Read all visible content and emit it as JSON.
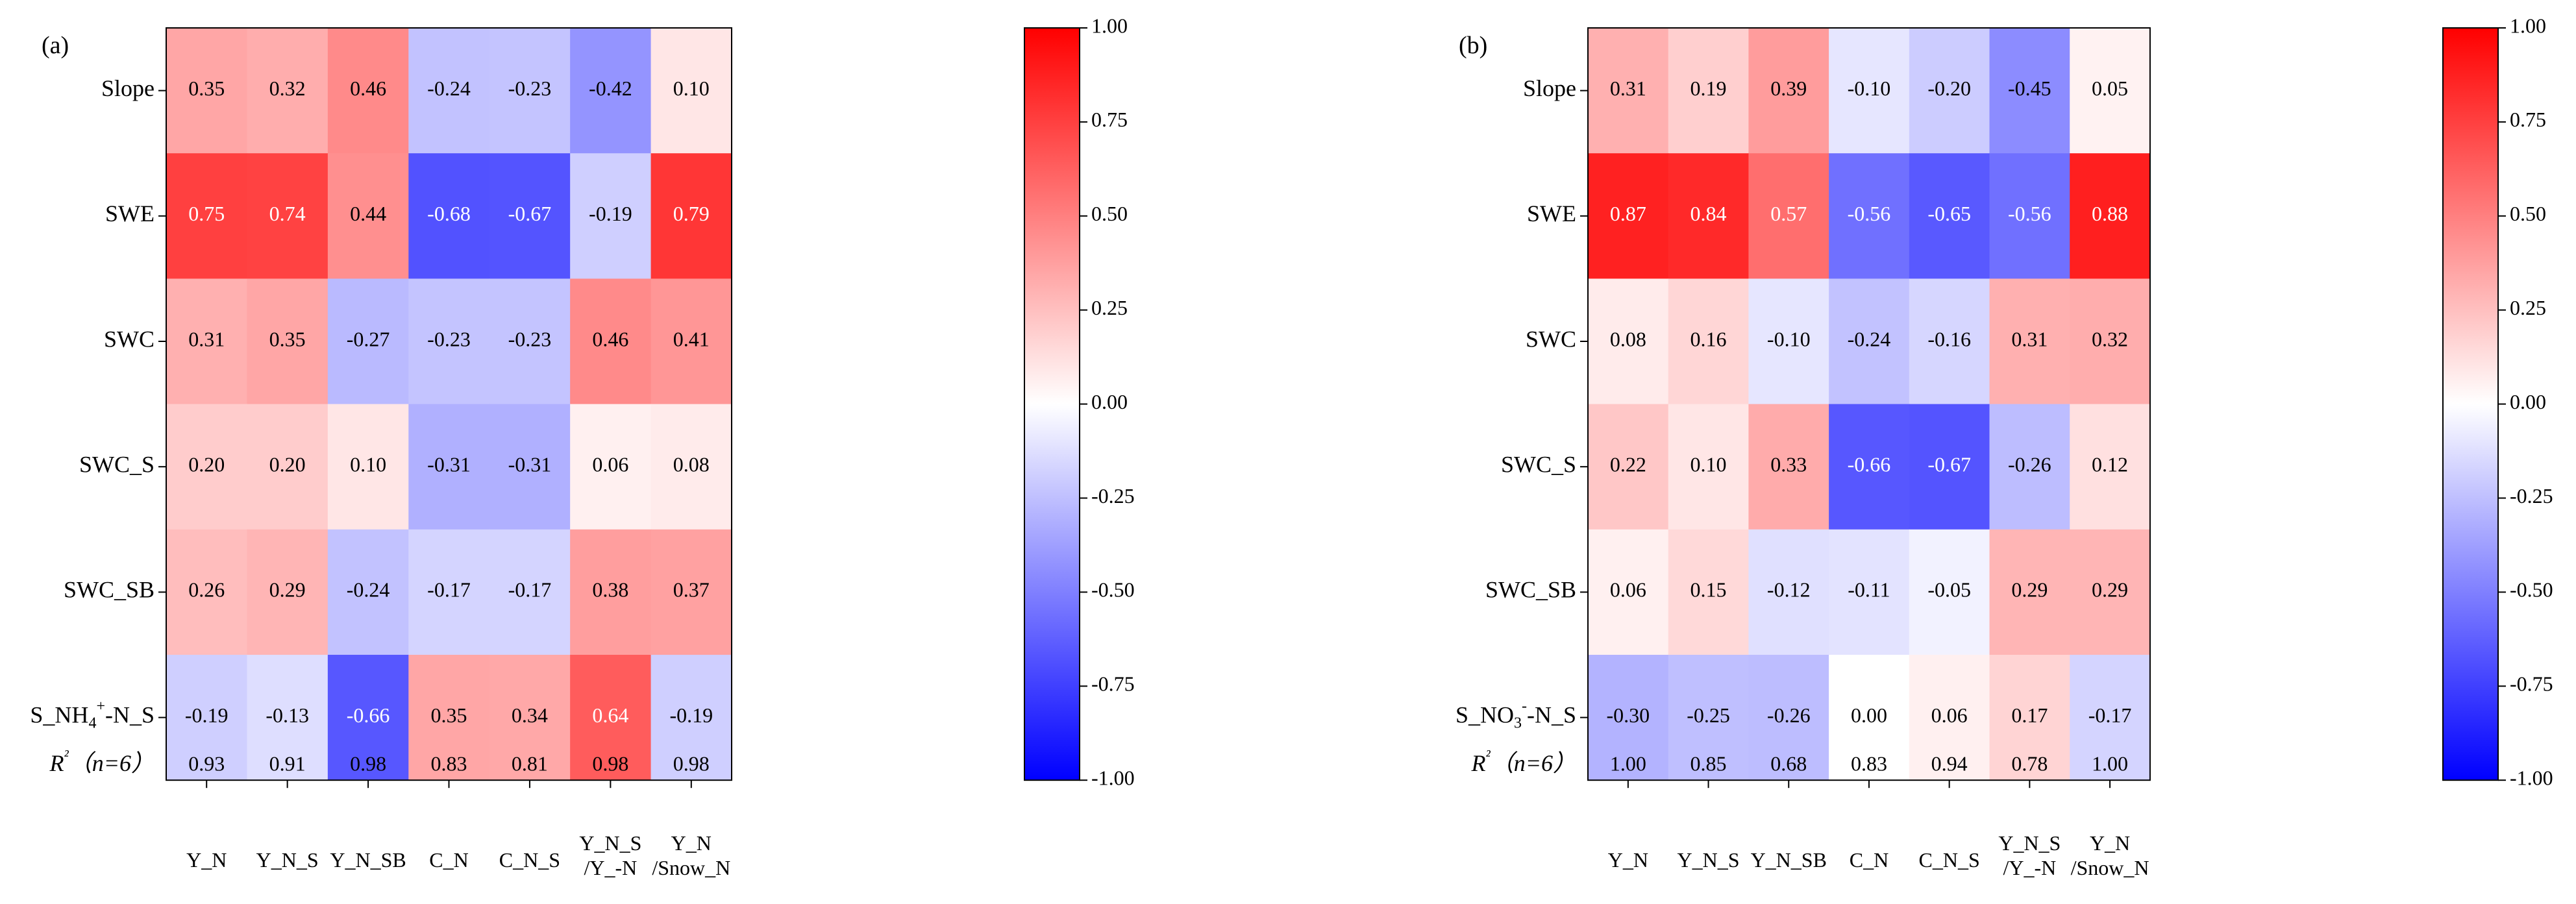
{
  "chart_data": [
    {
      "type": "heatmap",
      "panel_label": "(a)",
      "rows": [
        "Slope",
        "SWE",
        "SWC",
        "SWC_S",
        "SWC_SB",
        "S_NH4+-N_S"
      ],
      "columns": [
        "Y_N",
        "Y_N_S",
        "Y_N_SB",
        "C_N",
        "C_N_S",
        "Y_N_S\n/Y_-N",
        "Y_N\n/Snow_N"
      ],
      "values": [
        [
          0.35,
          0.32,
          0.46,
          -0.24,
          -0.23,
          -0.42,
          0.1
        ],
        [
          0.75,
          0.74,
          0.44,
          -0.68,
          -0.67,
          -0.19,
          0.79
        ],
        [
          0.31,
          0.35,
          -0.27,
          -0.23,
          -0.23,
          0.46,
          0.41
        ],
        [
          0.2,
          0.2,
          0.1,
          -0.31,
          -0.31,
          0.06,
          0.08
        ],
        [
          0.26,
          0.29,
          -0.24,
          -0.17,
          -0.17,
          0.38,
          0.37
        ],
        [
          -0.19,
          -0.13,
          -0.66,
          0.35,
          0.34,
          0.64,
          -0.19
        ]
      ],
      "r2_label": "R²（n=6）",
      "r2_values": [
        "0.93",
        "0.91",
        "0.98",
        "0.83",
        "0.81",
        "0.98",
        "0.98"
      ],
      "colorbar": {
        "min": -1.0,
        "max": 1.0,
        "ticks": [
          "1.00",
          "0.75",
          "0.50",
          "0.25",
          "0.00",
          "-0.25",
          "-0.50",
          "-0.75",
          "-1.00"
        ]
      }
    },
    {
      "type": "heatmap",
      "panel_label": "(b)",
      "rows": [
        "Slope",
        "SWE",
        "SWC",
        "SWC_S",
        "SWC_SB",
        "S_NO3--N_S"
      ],
      "columns": [
        "Y_N",
        "Y_N_S",
        "Y_N_SB",
        "C_N",
        "C_N_S",
        "Y_N_S\n/Y_-N",
        "Y_N\n/Snow_N"
      ],
      "values": [
        [
          0.31,
          0.19,
          0.39,
          -0.1,
          -0.2,
          -0.45,
          0.05
        ],
        [
          0.87,
          0.84,
          0.57,
          -0.56,
          -0.65,
          -0.56,
          0.88
        ],
        [
          0.08,
          0.16,
          -0.1,
          -0.24,
          -0.16,
          0.31,
          0.32
        ],
        [
          0.22,
          0.1,
          0.33,
          -0.66,
          -0.67,
          -0.26,
          0.12
        ],
        [
          0.06,
          0.15,
          -0.12,
          -0.11,
          -0.05,
          0.29,
          0.29
        ],
        [
          -0.3,
          -0.25,
          -0.26,
          0.0,
          0.06,
          0.17,
          -0.17
        ]
      ],
      "r2_label": "R²（n=6）",
      "r2_values": [
        "1.00",
        "0.85",
        "0.68",
        "0.83",
        "0.94",
        "0.78",
        "1.00"
      ],
      "colorbar": {
        "min": -1.0,
        "max": 1.0,
        "ticks": [
          "1.00",
          "0.75",
          "0.50",
          "0.25",
          "0.00",
          "-0.25",
          "-0.50",
          "-0.75",
          "-1.00"
        ]
      }
    }
  ]
}
